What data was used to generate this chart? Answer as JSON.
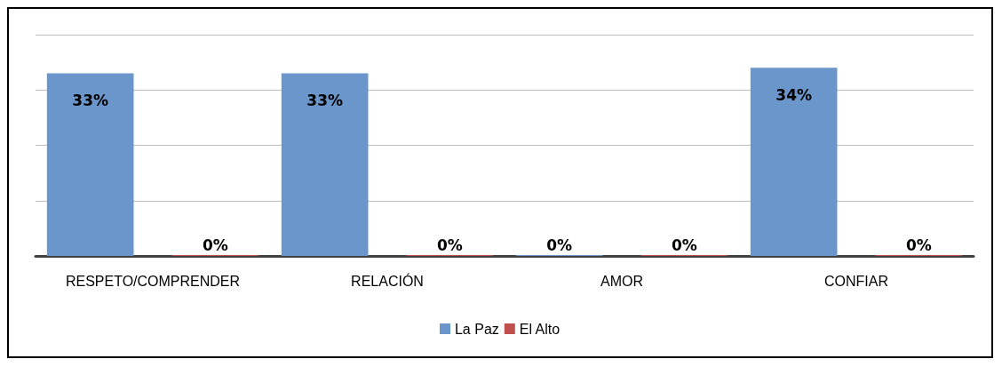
{
  "chart_data": {
    "type": "bar",
    "categories": [
      "RESPETO/COMPRENDER",
      "RELACIÓN",
      "AMOR",
      "CONFIAR"
    ],
    "series": [
      {
        "name": "La Paz",
        "color": "#6a96cb",
        "values": [
          33,
          33,
          0,
          34
        ],
        "value_labels": [
          "33%",
          "33%",
          "0%",
          "34%"
        ]
      },
      {
        "name": "El Alto",
        "color": "#c0504d",
        "values": [
          0,
          0,
          0,
          0
        ],
        "value_labels": [
          "0%",
          "0%",
          "0%",
          "0%"
        ]
      }
    ],
    "ylim": [
      0,
      40
    ],
    "yticks": [
      0,
      10,
      20,
      30,
      40
    ],
    "tick_labels": "x",
    "grid": "y",
    "legend": "bottom"
  }
}
